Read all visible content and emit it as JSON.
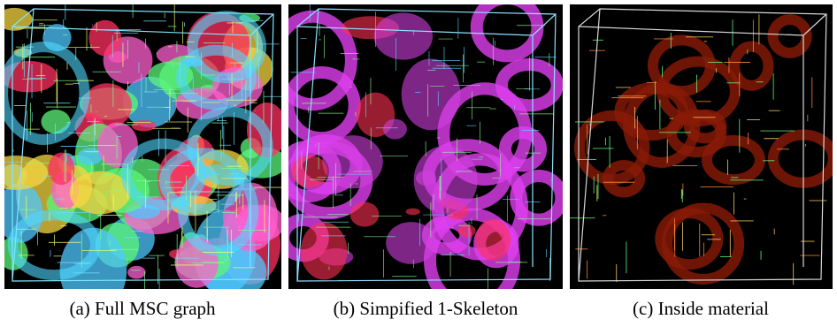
{
  "figure": {
    "panels": [
      {
        "caption": "(a) Full MSC graph"
      },
      {
        "caption": "(b) Simpified 1-Skeleton"
      },
      {
        "caption": "(c) Inside material"
      }
    ]
  }
}
